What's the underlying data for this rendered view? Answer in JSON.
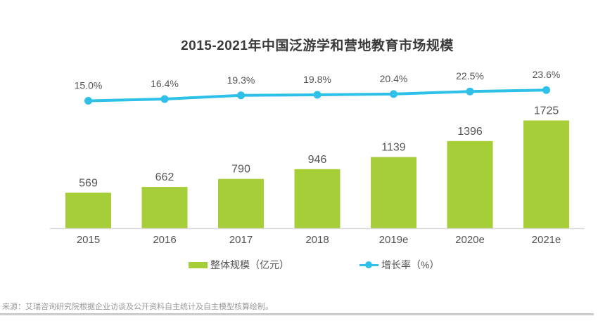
{
  "title": "2015-2021年中国泛游学和营地教育市场规模",
  "source_note": "来源：艾瑞咨询研究院根据企业访谈及公开资料自主统计及自主模型核算绘制。",
  "colors": {
    "bar": "#a6ce39",
    "line": "#2ec0e8",
    "title_text": "#3a3a3a",
    "label_text": "#555555",
    "axis_line": "#d9d9d9",
    "source_text": "#999999",
    "divider": "#c6c6c6",
    "background": "#ffffff"
  },
  "legend": [
    {
      "label": "整体规模（亿元）",
      "swatch": "bar-swatch"
    },
    {
      "label": "增长率（%）",
      "swatch": "line-swatch"
    }
  ],
  "chart_data": {
    "type": "bar+line",
    "title": "2015-2021年中国泛游学和营地教育市场规模",
    "categories": [
      "2015",
      "2016",
      "2017",
      "2018",
      "2019e",
      "2020e",
      "2021e"
    ],
    "series": [
      {
        "name": "整体规模（亿元）",
        "type": "bar",
        "color": "#a6ce39",
        "values": [
          569,
          662,
          790,
          946,
          1139,
          1396,
          1725
        ],
        "labels": [
          "569",
          "662",
          "790",
          "946",
          "1139",
          "1396",
          "1725"
        ]
      },
      {
        "name": "增长率（%）",
        "type": "line",
        "color": "#2ec0e8",
        "values": [
          15.0,
          16.4,
          19.3,
          19.8,
          20.4,
          22.5,
          23.6
        ],
        "labels": [
          "15.0%",
          "16.4%",
          "19.3%",
          "19.8%",
          "20.4%",
          "22.5%",
          "23.6%"
        ]
      }
    ],
    "value_labels": true,
    "grid": false,
    "y_axis_visible": false,
    "x_axis_line": true,
    "legend_position": "bottom",
    "xlabel": "",
    "ylabel": ""
  }
}
